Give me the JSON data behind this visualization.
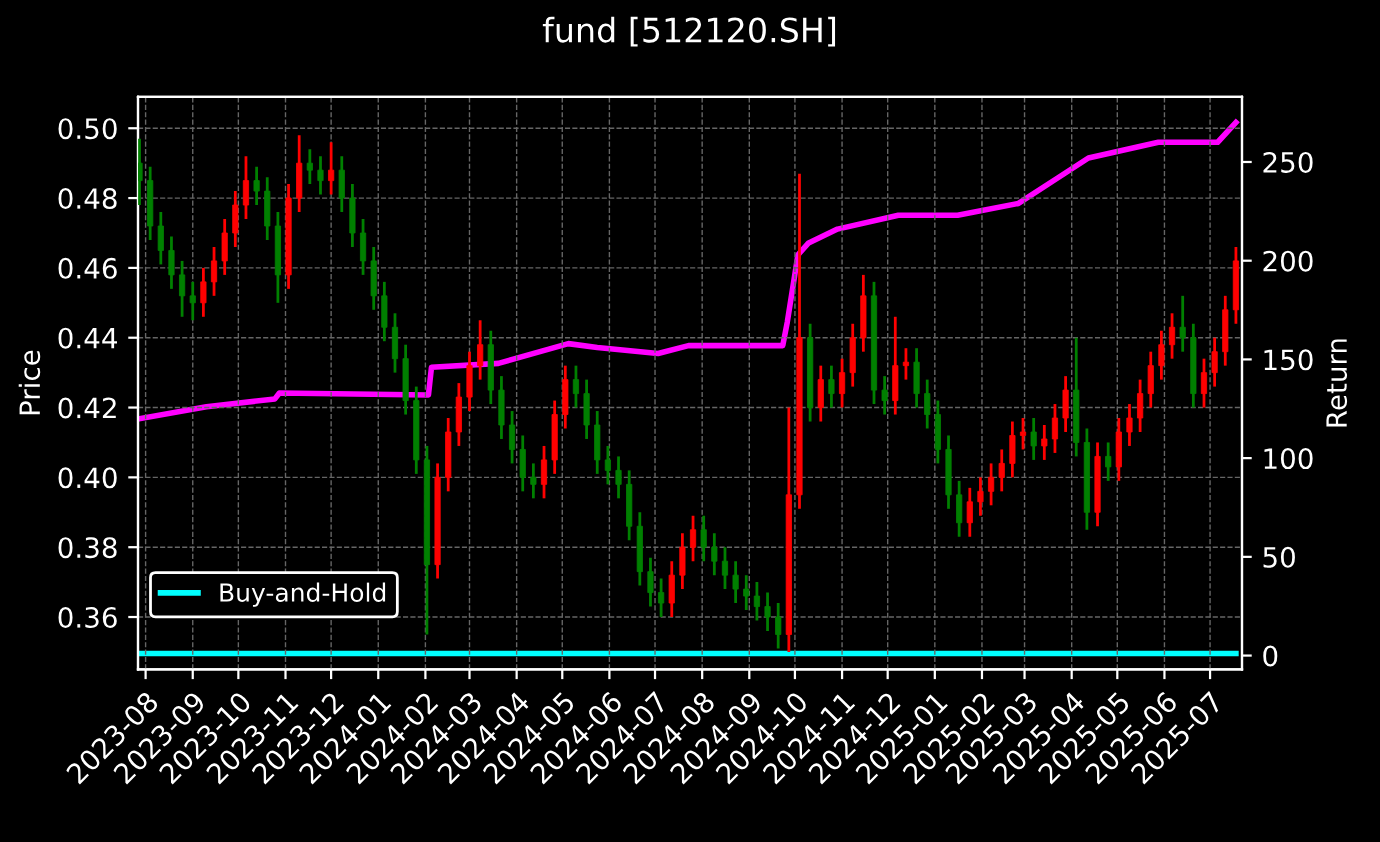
{
  "chart_data": {
    "type": "candlestick",
    "title": "fund [512120.SH]",
    "ylabel": "Price",
    "y2label": "Return",
    "x": [
      "2023-07-28",
      "2023-08-04",
      "2023-08-11",
      "2023-08-18",
      "2023-08-25",
      "2023-09-01",
      "2023-09-08",
      "2023-09-15",
      "2023-09-22",
      "2023-09-29",
      "2023-10-06",
      "2023-10-13",
      "2023-10-20",
      "2023-10-27",
      "2023-11-03",
      "2023-11-10",
      "2023-11-17",
      "2023-11-24",
      "2023-12-01",
      "2023-12-08",
      "2023-12-15",
      "2023-12-22",
      "2023-12-29",
      "2024-01-05",
      "2024-01-12",
      "2024-01-19",
      "2024-01-26",
      "2024-02-02",
      "2024-02-09",
      "2024-02-16",
      "2024-02-23",
      "2024-03-01",
      "2024-03-08",
      "2024-03-15",
      "2024-03-22",
      "2024-03-29",
      "2024-04-05",
      "2024-04-12",
      "2024-04-19",
      "2024-04-26",
      "2024-05-03",
      "2024-05-10",
      "2024-05-17",
      "2024-05-24",
      "2024-05-31",
      "2024-06-07",
      "2024-06-14",
      "2024-06-21",
      "2024-06-28",
      "2024-07-05",
      "2024-07-12",
      "2024-07-19",
      "2024-07-26",
      "2024-08-02",
      "2024-08-09",
      "2024-08-16",
      "2024-08-23",
      "2024-08-30",
      "2024-09-06",
      "2024-09-13",
      "2024-09-20",
      "2024-09-27",
      "2024-10-04",
      "2024-10-11",
      "2024-10-18",
      "2024-10-25",
      "2024-11-01",
      "2024-11-08",
      "2024-11-15",
      "2024-11-22",
      "2024-11-29",
      "2024-12-06",
      "2024-12-13",
      "2024-12-20",
      "2024-12-27",
      "2025-01-03",
      "2025-01-10",
      "2025-01-17",
      "2025-01-24",
      "2025-01-31",
      "2025-02-07",
      "2025-02-14",
      "2025-02-21",
      "2025-02-28",
      "2025-03-07",
      "2025-03-14",
      "2025-03-21",
      "2025-03-28",
      "2025-04-04",
      "2025-04-11",
      "2025-04-18",
      "2025-04-25",
      "2025-05-02",
      "2025-05-09",
      "2025-05-16",
      "2025-05-23",
      "2025-05-30",
      "2025-06-06",
      "2025-06-13",
      "2025-06-20",
      "2025-06-27",
      "2025-07-04",
      "2025-07-11",
      "2025-07-18"
    ],
    "ohlc": [
      [
        0.49,
        0.497,
        0.478,
        0.485
      ],
      [
        0.485,
        0.489,
        0.468,
        0.472
      ],
      [
        0.472,
        0.476,
        0.461,
        0.465
      ],
      [
        0.465,
        0.469,
        0.454,
        0.458
      ],
      [
        0.458,
        0.462,
        0.446,
        0.452
      ],
      [
        0.452,
        0.456,
        0.445,
        0.45
      ],
      [
        0.45,
        0.46,
        0.446,
        0.456
      ],
      [
        0.456,
        0.466,
        0.452,
        0.462
      ],
      [
        0.462,
        0.474,
        0.458,
        0.47
      ],
      [
        0.47,
        0.482,
        0.466,
        0.478
      ],
      [
        0.478,
        0.492,
        0.474,
        0.485
      ],
      [
        0.485,
        0.489,
        0.478,
        0.482
      ],
      [
        0.482,
        0.486,
        0.468,
        0.472
      ],
      [
        0.472,
        0.476,
        0.45,
        0.458
      ],
      [
        0.458,
        0.484,
        0.454,
        0.48
      ],
      [
        0.48,
        0.498,
        0.476,
        0.49
      ],
      [
        0.49,
        0.494,
        0.484,
        0.488
      ],
      [
        0.488,
        0.492,
        0.481,
        0.485
      ],
      [
        0.485,
        0.496,
        0.481,
        0.488
      ],
      [
        0.488,
        0.492,
        0.476,
        0.48
      ],
      [
        0.48,
        0.484,
        0.466,
        0.47
      ],
      [
        0.47,
        0.474,
        0.458,
        0.462
      ],
      [
        0.462,
        0.466,
        0.448,
        0.452
      ],
      [
        0.452,
        0.456,
        0.439,
        0.443
      ],
      [
        0.443,
        0.447,
        0.43,
        0.434
      ],
      [
        0.434,
        0.438,
        0.418,
        0.422
      ],
      [
        0.422,
        0.426,
        0.401,
        0.405
      ],
      [
        0.405,
        0.409,
        0.355,
        0.375
      ],
      [
        0.375,
        0.404,
        0.371,
        0.4
      ],
      [
        0.4,
        0.417,
        0.396,
        0.413
      ],
      [
        0.413,
        0.427,
        0.409,
        0.423
      ],
      [
        0.423,
        0.436,
        0.419,
        0.432
      ],
      [
        0.432,
        0.445,
        0.428,
        0.438
      ],
      [
        0.438,
        0.442,
        0.421,
        0.425
      ],
      [
        0.425,
        0.429,
        0.411,
        0.415
      ],
      [
        0.415,
        0.419,
        0.404,
        0.408
      ],
      [
        0.408,
        0.412,
        0.396,
        0.4
      ],
      [
        0.4,
        0.404,
        0.394,
        0.398
      ],
      [
        0.398,
        0.409,
        0.394,
        0.405
      ],
      [
        0.405,
        0.422,
        0.401,
        0.418
      ],
      [
        0.418,
        0.432,
        0.414,
        0.428
      ],
      [
        0.428,
        0.432,
        0.42,
        0.424
      ],
      [
        0.424,
        0.428,
        0.411,
        0.415
      ],
      [
        0.415,
        0.419,
        0.401,
        0.405
      ],
      [
        0.405,
        0.409,
        0.398,
        0.402
      ],
      [
        0.402,
        0.406,
        0.394,
        0.398
      ],
      [
        0.398,
        0.402,
        0.382,
        0.386
      ],
      [
        0.386,
        0.39,
        0.369,
        0.373
      ],
      [
        0.373,
        0.377,
        0.363,
        0.367
      ],
      [
        0.367,
        0.371,
        0.36,
        0.364
      ],
      [
        0.364,
        0.376,
        0.36,
        0.372
      ],
      [
        0.372,
        0.384,
        0.368,
        0.38
      ],
      [
        0.38,
        0.389,
        0.376,
        0.385
      ],
      [
        0.385,
        0.389,
        0.376,
        0.38
      ],
      [
        0.38,
        0.384,
        0.372,
        0.376
      ],
      [
        0.376,
        0.38,
        0.368,
        0.372
      ],
      [
        0.372,
        0.376,
        0.364,
        0.368
      ],
      [
        0.368,
        0.372,
        0.362,
        0.366
      ],
      [
        0.366,
        0.37,
        0.359,
        0.363
      ],
      [
        0.363,
        0.367,
        0.356,
        0.36
      ],
      [
        0.36,
        0.364,
        0.351,
        0.355
      ],
      [
        0.355,
        0.42,
        0.35,
        0.395
      ],
      [
        0.395,
        0.487,
        0.391,
        0.44
      ],
      [
        0.44,
        0.444,
        0.416,
        0.42
      ],
      [
        0.42,
        0.432,
        0.416,
        0.428
      ],
      [
        0.428,
        0.432,
        0.42,
        0.424
      ],
      [
        0.424,
        0.434,
        0.42,
        0.43
      ],
      [
        0.43,
        0.444,
        0.426,
        0.44
      ],
      [
        0.44,
        0.458,
        0.436,
        0.452
      ],
      [
        0.452,
        0.456,
        0.421,
        0.425
      ],
      [
        0.425,
        0.429,
        0.418,
        0.422
      ],
      [
        0.422,
        0.446,
        0.418,
        0.432
      ],
      [
        0.432,
        0.437,
        0.428,
        0.433
      ],
      [
        0.433,
        0.437,
        0.42,
        0.424
      ],
      [
        0.424,
        0.428,
        0.414,
        0.418
      ],
      [
        0.418,
        0.422,
        0.404,
        0.408
      ],
      [
        0.408,
        0.412,
        0.391,
        0.395
      ],
      [
        0.395,
        0.399,
        0.383,
        0.387
      ],
      [
        0.387,
        0.397,
        0.383,
        0.393
      ],
      [
        0.393,
        0.4,
        0.389,
        0.396
      ],
      [
        0.396,
        0.404,
        0.392,
        0.4
      ],
      [
        0.4,
        0.408,
        0.396,
        0.404
      ],
      [
        0.404,
        0.416,
        0.4,
        0.412
      ],
      [
        0.412,
        0.417,
        0.408,
        0.413
      ],
      [
        0.413,
        0.417,
        0.405,
        0.409
      ],
      [
        0.409,
        0.415,
        0.405,
        0.411
      ],
      [
        0.411,
        0.421,
        0.407,
        0.417
      ],
      [
        0.417,
        0.429,
        0.413,
        0.425
      ],
      [
        0.425,
        0.44,
        0.406,
        0.41
      ],
      [
        0.41,
        0.414,
        0.385,
        0.39
      ],
      [
        0.39,
        0.41,
        0.386,
        0.406
      ],
      [
        0.406,
        0.41,
        0.399,
        0.403
      ],
      [
        0.403,
        0.417,
        0.399,
        0.413
      ],
      [
        0.413,
        0.421,
        0.409,
        0.417
      ],
      [
        0.417,
        0.428,
        0.413,
        0.424
      ],
      [
        0.424,
        0.436,
        0.42,
        0.432
      ],
      [
        0.432,
        0.442,
        0.428,
        0.438
      ],
      [
        0.438,
        0.447,
        0.434,
        0.443
      ],
      [
        0.443,
        0.452,
        0.436,
        0.44
      ],
      [
        0.44,
        0.444,
        0.42,
        0.424
      ],
      [
        0.424,
        0.434,
        0.42,
        0.43
      ],
      [
        0.43,
        0.44,
        0.426,
        0.436
      ],
      [
        0.436,
        0.452,
        0.432,
        0.448
      ],
      [
        0.448,
        0.466,
        0.444,
        0.462
      ]
    ],
    "colors": [
      "#008000",
      "#008000",
      "#008000",
      "#008000",
      "#008000",
      "#008000",
      "#ff0000",
      "#ff0000",
      "#ff0000",
      "#ff0000",
      "#ff0000",
      "#008000",
      "#008000",
      "#008000",
      "#ff0000",
      "#ff0000",
      "#008000",
      "#008000",
      "#ff0000",
      "#008000",
      "#008000",
      "#008000",
      "#008000",
      "#008000",
      "#008000",
      "#008000",
      "#008000",
      "#008000",
      "#ff0000",
      "#ff0000",
      "#ff0000",
      "#ff0000",
      "#ff0000",
      "#008000",
      "#008000",
      "#008000",
      "#008000",
      "#008000",
      "#ff0000",
      "#ff0000",
      "#ff0000",
      "#008000",
      "#008000",
      "#008000",
      "#008000",
      "#008000",
      "#008000",
      "#008000",
      "#008000",
      "#008000",
      "#ff0000",
      "#ff0000",
      "#ff0000",
      "#008000",
      "#008000",
      "#008000",
      "#008000",
      "#008000",
      "#008000",
      "#008000",
      "#008000",
      "#ff0000",
      "#ff0000",
      "#008000",
      "#ff0000",
      "#008000",
      "#ff0000",
      "#ff0000",
      "#ff0000",
      "#008000",
      "#008000",
      "#ff0000",
      "#ff0000",
      "#008000",
      "#008000",
      "#008000",
      "#008000",
      "#008000",
      "#ff0000",
      "#ff0000",
      "#ff0000",
      "#ff0000",
      "#ff0000",
      "#ff0000",
      "#008000",
      "#ff0000",
      "#ff0000",
      "#ff0000",
      "#008000",
      "#008000",
      "#ff0000",
      "#008000",
      "#ff0000",
      "#ff0000",
      "#ff0000",
      "#ff0000",
      "#ff0000",
      "#ff0000",
      "#008000",
      "#008000",
      "#ff0000",
      "#ff0000",
      "#ff0000",
      "#ff0000"
    ],
    "series": [
      {
        "type": "line",
        "axis": "y2",
        "color": "#ff00ff",
        "x": [
          "2023-07-28",
          "2023-09-10",
          "2023-10-25",
          "2023-10-28",
          "2024-02-03",
          "2024-02-05",
          "2024-03-20",
          "2024-05-05",
          "2024-05-24",
          "2024-07-03",
          "2024-07-23",
          "2024-09-23",
          "2024-09-26",
          "2024-10-03",
          "2024-10-10",
          "2024-10-29",
          "2024-12-08",
          "2025-01-16",
          "2025-02-25",
          "2025-03-23",
          "2025-04-12",
          "2025-05-28",
          "2025-07-06",
          "2025-07-18"
        ],
        "values": [
          120,
          126,
          130,
          133,
          132,
          146,
          148,
          158,
          156,
          153,
          157,
          157,
          169,
          203,
          209,
          216,
          223,
          223,
          229,
          242,
          252,
          260,
          260,
          270
        ]
      },
      {
        "type": "line",
        "axis": "y2",
        "name": "Buy-and-Hold",
        "color": "#00ffff",
        "x": [
          "2023-07-28",
          "2024-07-26",
          "2025-07-18"
        ],
        "values": [
          1,
          1,
          1
        ]
      }
    ],
    "xlim": [
      "2023-07-27",
      "2025-07-22"
    ],
    "xticks": [
      {
        "value": "2023-08",
        "label": "2023-08"
      },
      {
        "value": "2023-09",
        "label": "2023-09"
      },
      {
        "value": "2023-10",
        "label": "2023-10"
      },
      {
        "value": "2023-11",
        "label": "2023-11"
      },
      {
        "value": "2023-12",
        "label": "2023-12"
      },
      {
        "value": "2024-01",
        "label": "2024-01"
      },
      {
        "value": "2024-02",
        "label": "2024-02"
      },
      {
        "value": "2024-03",
        "label": "2024-03"
      },
      {
        "value": "2024-04",
        "label": "2024-04"
      },
      {
        "value": "2024-05",
        "label": "2024-05"
      },
      {
        "value": "2024-06",
        "label": "2024-06"
      },
      {
        "value": "2024-07",
        "label": "2024-07"
      },
      {
        "value": "2024-08",
        "label": "2024-08"
      },
      {
        "value": "2024-09",
        "label": "2024-09"
      },
      {
        "value": "2024-10",
        "label": "2024-10"
      },
      {
        "value": "2024-11",
        "label": "2024-11"
      },
      {
        "value": "2024-12",
        "label": "2024-12"
      },
      {
        "value": "2025-01",
        "label": "2025-01"
      },
      {
        "value": "2025-02",
        "label": "2025-02"
      },
      {
        "value": "2025-03",
        "label": "2025-03"
      },
      {
        "value": "2025-04",
        "label": "2025-04"
      },
      {
        "value": "2025-05",
        "label": "2025-05"
      },
      {
        "value": "2025-06",
        "label": "2025-06"
      },
      {
        "value": "2025-07",
        "label": "2025-07"
      }
    ],
    "ylim": [
      0.345,
      0.509
    ],
    "yticks": [
      {
        "value": 0.36,
        "label": "0.36"
      },
      {
        "value": 0.38,
        "label": "0.38"
      },
      {
        "value": 0.4,
        "label": "0.40"
      },
      {
        "value": 0.42,
        "label": "0.42"
      },
      {
        "value": 0.44,
        "label": "0.44"
      },
      {
        "value": 0.46,
        "label": "0.46"
      },
      {
        "value": 0.48,
        "label": "0.48"
      },
      {
        "value": 0.5,
        "label": "0.50"
      }
    ],
    "y2lim": [
      -7,
      283
    ],
    "y2ticks": [
      0,
      50,
      100,
      150,
      200,
      250
    ],
    "grid": true,
    "legend": "bottom left",
    "line_style": "solid"
  }
}
